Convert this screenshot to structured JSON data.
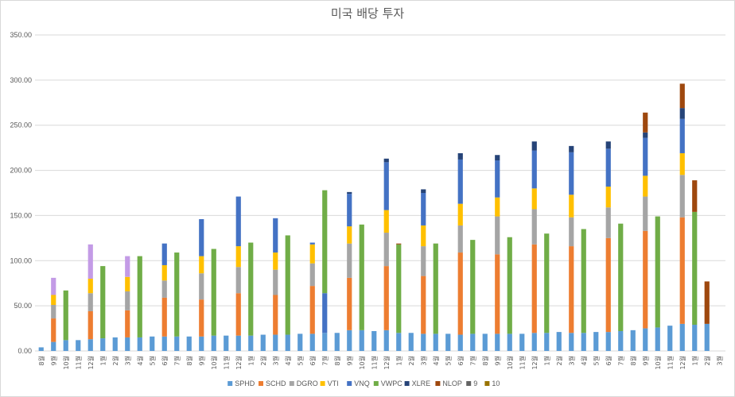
{
  "chart_data": {
    "type": "bar",
    "stacked": true,
    "title": "미국 배당 투자",
    "xlabel": "",
    "ylabel": "",
    "ylim": [
      0,
      350
    ],
    "yticks": [
      "0.00",
      "50.00",
      "100.00",
      "150.00",
      "200.00",
      "250.00",
      "300.00",
      "350.00"
    ],
    "grid": true,
    "legend": "bottom",
    "categories": [
      "8월",
      "9월",
      "10월",
      "11월",
      "12월",
      "1월",
      "2월",
      "3월",
      "4월",
      "5월",
      "6월",
      "7월",
      "8월",
      "9월",
      "10월",
      "11월",
      "12월",
      "1월",
      "2월",
      "3월",
      "4월",
      "5월",
      "6월",
      "7월",
      "8월",
      "9월",
      "10월",
      "11월",
      "12월",
      "1월",
      "2월",
      "3월",
      "4월",
      "5월",
      "6월",
      "7월",
      "8월",
      "9월",
      "10월",
      "11월",
      "12월",
      "1월",
      "2월",
      "3월",
      "4월",
      "5월",
      "6월",
      "7월",
      "8월",
      "9월",
      "10월",
      "11월",
      "12월",
      "1월",
      "2월",
      "3월"
    ],
    "series": [
      {
        "name": "SPHD",
        "color": "#5b9bd5",
        "values": [
          4,
          10,
          12,
          12,
          13,
          14,
          15,
          15,
          15,
          16,
          16,
          16,
          16,
          16,
          17,
          17,
          17,
          17,
          18,
          18,
          18,
          19,
          19,
          20,
          20,
          23,
          23,
          22,
          23,
          20,
          20,
          19,
          19,
          19,
          18,
          19,
          19,
          19,
          19,
          19,
          20,
          20,
          21,
          20,
          20,
          21,
          21,
          22,
          23,
          25,
          26,
          28,
          30,
          29,
          30,
          0
        ]
      },
      {
        "name": "SCHD",
        "color": "#ed7d31",
        "values": [
          0,
          26,
          0,
          0,
          31,
          0,
          0,
          30,
          0,
          0,
          43,
          0,
          0,
          41,
          0,
          0,
          47,
          0,
          0,
          44,
          0,
          0,
          53,
          0,
          0,
          58,
          0,
          0,
          71,
          0,
          0,
          64,
          0,
          0,
          91,
          0,
          0,
          88,
          0,
          0,
          98,
          0,
          0,
          96,
          0,
          0,
          104,
          0,
          0,
          108,
          0,
          0,
          118,
          0,
          0,
          0
        ]
      },
      {
        "name": "DGRO",
        "color": "#a5a5a5",
        "values": [
          0,
          15,
          0,
          0,
          20,
          0,
          0,
          21,
          0,
          0,
          19,
          0,
          0,
          29,
          0,
          0,
          29,
          0,
          0,
          28,
          0,
          0,
          25,
          0,
          0,
          38,
          0,
          0,
          37,
          0,
          0,
          33,
          0,
          0,
          30,
          0,
          0,
          42,
          0,
          0,
          39,
          0,
          0,
          32,
          0,
          0,
          34,
          0,
          0,
          38,
          0,
          0,
          47,
          0,
          0,
          0
        ]
      },
      {
        "name": "VTI",
        "color": "#ffc000",
        "values": [
          0,
          11,
          0,
          0,
          16,
          0,
          0,
          16,
          0,
          0,
          17,
          0,
          0,
          19,
          0,
          0,
          23,
          0,
          0,
          19,
          0,
          0,
          21,
          0,
          0,
          19,
          0,
          0,
          25,
          0,
          0,
          23,
          0,
          0,
          24,
          0,
          0,
          21,
          0,
          0,
          23,
          0,
          0,
          25,
          0,
          0,
          23,
          0,
          0,
          23,
          0,
          0,
          24,
          0,
          0,
          0
        ]
      },
      {
        "name": "VNQ",
        "color": "#4472c4",
        "values": [
          0,
          0,
          0,
          0,
          0,
          0,
          0,
          0,
          0,
          0,
          24,
          0,
          0,
          41,
          0,
          0,
          55,
          0,
          0,
          38,
          0,
          0,
          2,
          44,
          0,
          36,
          0,
          0,
          53,
          0,
          0,
          36,
          0,
          0,
          49,
          0,
          0,
          41,
          0,
          0,
          42,
          0,
          0,
          47,
          0,
          0,
          42,
          0,
          0,
          42,
          0,
          0,
          38,
          0,
          0,
          0
        ]
      },
      {
        "name": "VWPC",
        "color": "#70ad47",
        "values": [
          0,
          0,
          55,
          0,
          0,
          80,
          0,
          0,
          90,
          0,
          0,
          93,
          0,
          0,
          96,
          0,
          0,
          103,
          0,
          0,
          110,
          0,
          0,
          114,
          0,
          0,
          117,
          0,
          0,
          98,
          0,
          0,
          100,
          0,
          0,
          104,
          0,
          0,
          107,
          0,
          0,
          110,
          0,
          0,
          115,
          0,
          0,
          119,
          0,
          0,
          123,
          0,
          0,
          125,
          0,
          0
        ]
      },
      {
        "name": "XLRE",
        "color": "#264478",
        "values": [
          0,
          0,
          0,
          0,
          0,
          0,
          0,
          0,
          0,
          0,
          0,
          0,
          0,
          0,
          0,
          0,
          0,
          0,
          0,
          0,
          0,
          0,
          0,
          0,
          0,
          2,
          0,
          0,
          4,
          0,
          0,
          4,
          0,
          0,
          7,
          0,
          0,
          6,
          0,
          0,
          10,
          0,
          0,
          7,
          0,
          0,
          8,
          0,
          0,
          6,
          0,
          0,
          12,
          0,
          0,
          0
        ]
      },
      {
        "name": "NLOP",
        "color": "#9e480e",
        "values": [
          0,
          0,
          0,
          0,
          0,
          0,
          0,
          0,
          0,
          0,
          0,
          0,
          0,
          0,
          0,
          0,
          0,
          0,
          0,
          0,
          0,
          0,
          0,
          0,
          0,
          0,
          0,
          0,
          0,
          1,
          0,
          0,
          0,
          0,
          0,
          0,
          0,
          0,
          0,
          0,
          0,
          0,
          0,
          0,
          0,
          0,
          0,
          0,
          0,
          22,
          0,
          0,
          27,
          35,
          47,
          0
        ]
      },
      {
        "name": "9",
        "color": "#636363",
        "values": [
          0,
          0,
          0,
          0,
          0,
          0,
          0,
          0,
          0,
          0,
          0,
          0,
          0,
          0,
          0,
          0,
          0,
          0,
          0,
          0,
          0,
          0,
          0,
          0,
          0,
          0,
          0,
          0,
          0,
          0,
          0,
          0,
          0,
          0,
          0,
          0,
          0,
          0,
          0,
          0,
          0,
          0,
          0,
          0,
          0,
          0,
          0,
          0,
          0,
          0,
          0,
          0,
          0,
          0,
          0,
          0
        ]
      },
      {
        "name": "10",
        "color": "#997300",
        "values": [
          0,
          0,
          0,
          0,
          0,
          0,
          0,
          0,
          0,
          0,
          0,
          0,
          0,
          0,
          0,
          0,
          0,
          0,
          0,
          0,
          0,
          0,
          0,
          0,
          0,
          0,
          0,
          0,
          0,
          0,
          0,
          0,
          0,
          0,
          0,
          0,
          0,
          0,
          0,
          0,
          0,
          0,
          0,
          0,
          0,
          0,
          0,
          0,
          0,
          0,
          0,
          0,
          0,
          0,
          0,
          0
        ]
      },
      {
        "name": "",
        "color": "#c39be6",
        "values": [
          0,
          19,
          0,
          0,
          38,
          0,
          0,
          23,
          0,
          0,
          0,
          0,
          0,
          0,
          0,
          0,
          0,
          0,
          0,
          0,
          0,
          0,
          0,
          0,
          0,
          0,
          0,
          0,
          0,
          0,
          0,
          0,
          0,
          0,
          0,
          0,
          0,
          0,
          0,
          0,
          0,
          0,
          0,
          0,
          0,
          0,
          0,
          0,
          0,
          0,
          0,
          0,
          0,
          0,
          0,
          0
        ]
      }
    ]
  }
}
